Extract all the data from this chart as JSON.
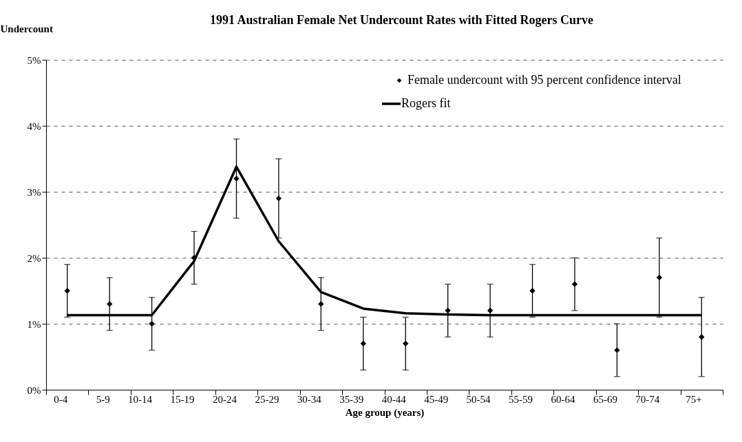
{
  "chart_data": {
    "type": "scatter",
    "title": "1991 Australian Female Net Undercount Rates with Fitted Rogers Curve",
    "xlabel": "Age group (years)",
    "ylabel": "Undercount",
    "categories": [
      "0-4",
      "5-9",
      "10-14",
      "15-19",
      "20-24",
      "25-29",
      "30-34",
      "35-39",
      "40-44",
      "45-49",
      "50-54",
      "55-59",
      "60-64",
      "65-69",
      "70-74",
      "75+"
    ],
    "series": [
      {
        "name": "Female undercount with 95 percent confidence interval",
        "type": "scatter",
        "marker": "diamond",
        "color": "#000000",
        "values": [
          1.5,
          1.3,
          1.0,
          2.0,
          3.2,
          2.9,
          1.3,
          0.7,
          0.7,
          1.2,
          1.2,
          1.5,
          1.6,
          0.6,
          1.7,
          0.8
        ],
        "errors": [
          [
            1.1,
            1.9
          ],
          [
            0.9,
            1.7
          ],
          [
            0.6,
            1.4
          ],
          [
            1.6,
            2.4
          ],
          [
            2.6,
            3.8
          ],
          [
            2.3,
            3.5
          ],
          [
            0.9,
            1.7
          ],
          [
            0.3,
            1.1
          ],
          [
            0.3,
            1.1
          ],
          [
            0.8,
            1.6
          ],
          [
            0.8,
            1.6
          ],
          [
            1.1,
            1.9
          ],
          [
            1.2,
            2.0
          ],
          [
            0.2,
            1.0
          ],
          [
            1.1,
            2.3
          ],
          [
            0.2,
            1.4
          ]
        ]
      },
      {
        "name": "Rogers fit",
        "type": "line",
        "marker": "none",
        "line_style": "solid",
        "color": "#000000",
        "values": [
          1.13,
          1.13,
          1.13,
          1.95,
          3.38,
          2.25,
          1.48,
          1.23,
          1.16,
          1.14,
          1.13,
          1.13,
          1.13,
          1.13,
          1.13,
          1.13
        ]
      }
    ],
    "ylim": [
      0,
      5
    ],
    "yticks": [
      {
        "value": 0,
        "label": "0%"
      },
      {
        "value": 1,
        "label": "1%"
      },
      {
        "value": 2,
        "label": "2%"
      },
      {
        "value": 3,
        "label": "3%"
      },
      {
        "value": 4,
        "label": "4%"
      },
      {
        "value": 5,
        "label": "5%"
      }
    ],
    "grid": "y",
    "legend": "top right"
  }
}
